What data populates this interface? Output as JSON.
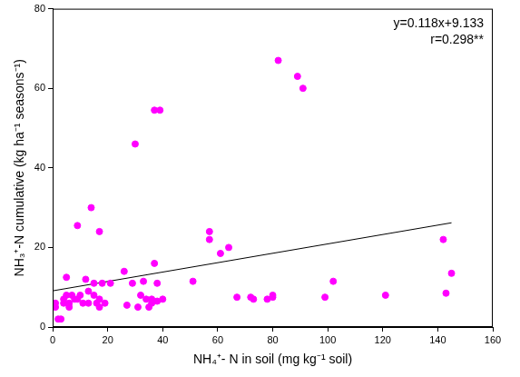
{
  "chart_data": {
    "type": "scatter",
    "x_label": "NH₄⁺- N in soil (mg kg⁻¹ soil)",
    "y_label": "NH₃⁺-N cumulative (kg ha⁻¹ seasons⁻¹)",
    "annotations": [
      "y=0.118x+9.133",
      "r=0.298**"
    ],
    "series": [
      {
        "type": "scatter",
        "color": "#ff00ff",
        "marker": "circle",
        "x": [
          1,
          1,
          2,
          3,
          4,
          4,
          5,
          5,
          6,
          6,
          7,
          8,
          9,
          9,
          10,
          11,
          12,
          13,
          13,
          14,
          15,
          15,
          16,
          17,
          17,
          17,
          18,
          19,
          21,
          26,
          27,
          29,
          30,
          31,
          32,
          33,
          34,
          35,
          36,
          36,
          37,
          37,
          38,
          38,
          39,
          40,
          51,
          57,
          57,
          61,
          64,
          67,
          72,
          73,
          78,
          80,
          80,
          82,
          89,
          91,
          99,
          102,
          121,
          142,
          143,
          145
        ],
        "values": [
          6,
          5,
          2,
          2,
          6,
          7,
          12.5,
          8,
          6,
          5,
          8,
          7,
          25.5,
          7,
          8,
          6,
          12,
          9,
          6,
          30,
          8,
          11,
          6,
          5,
          24,
          7,
          11,
          6,
          11,
          14,
          5.5,
          11,
          46,
          5,
          8,
          11.5,
          7,
          5,
          7,
          6,
          16,
          54.5,
          11,
          6.5,
          54.5,
          7,
          11.5,
          24,
          22,
          18.5,
          20,
          7.5,
          7.5,
          7,
          7,
          8,
          7.5,
          67,
          63,
          60,
          7.5,
          11.5,
          8,
          22,
          8.5,
          13.5
        ]
      },
      {
        "type": "line",
        "color": "#000000",
        "marker": "none",
        "line_style": "solid",
        "x": [
          0,
          145
        ],
        "values": [
          9.1,
          26.2
        ]
      }
    ],
    "xlim": [
      0,
      160
    ],
    "xticks": [
      0,
      20,
      40,
      60,
      80,
      100,
      120,
      140,
      160
    ],
    "ylim": [
      0,
      80
    ],
    "yticks": [
      0,
      20,
      40,
      60,
      80
    ],
    "grid": false
  }
}
